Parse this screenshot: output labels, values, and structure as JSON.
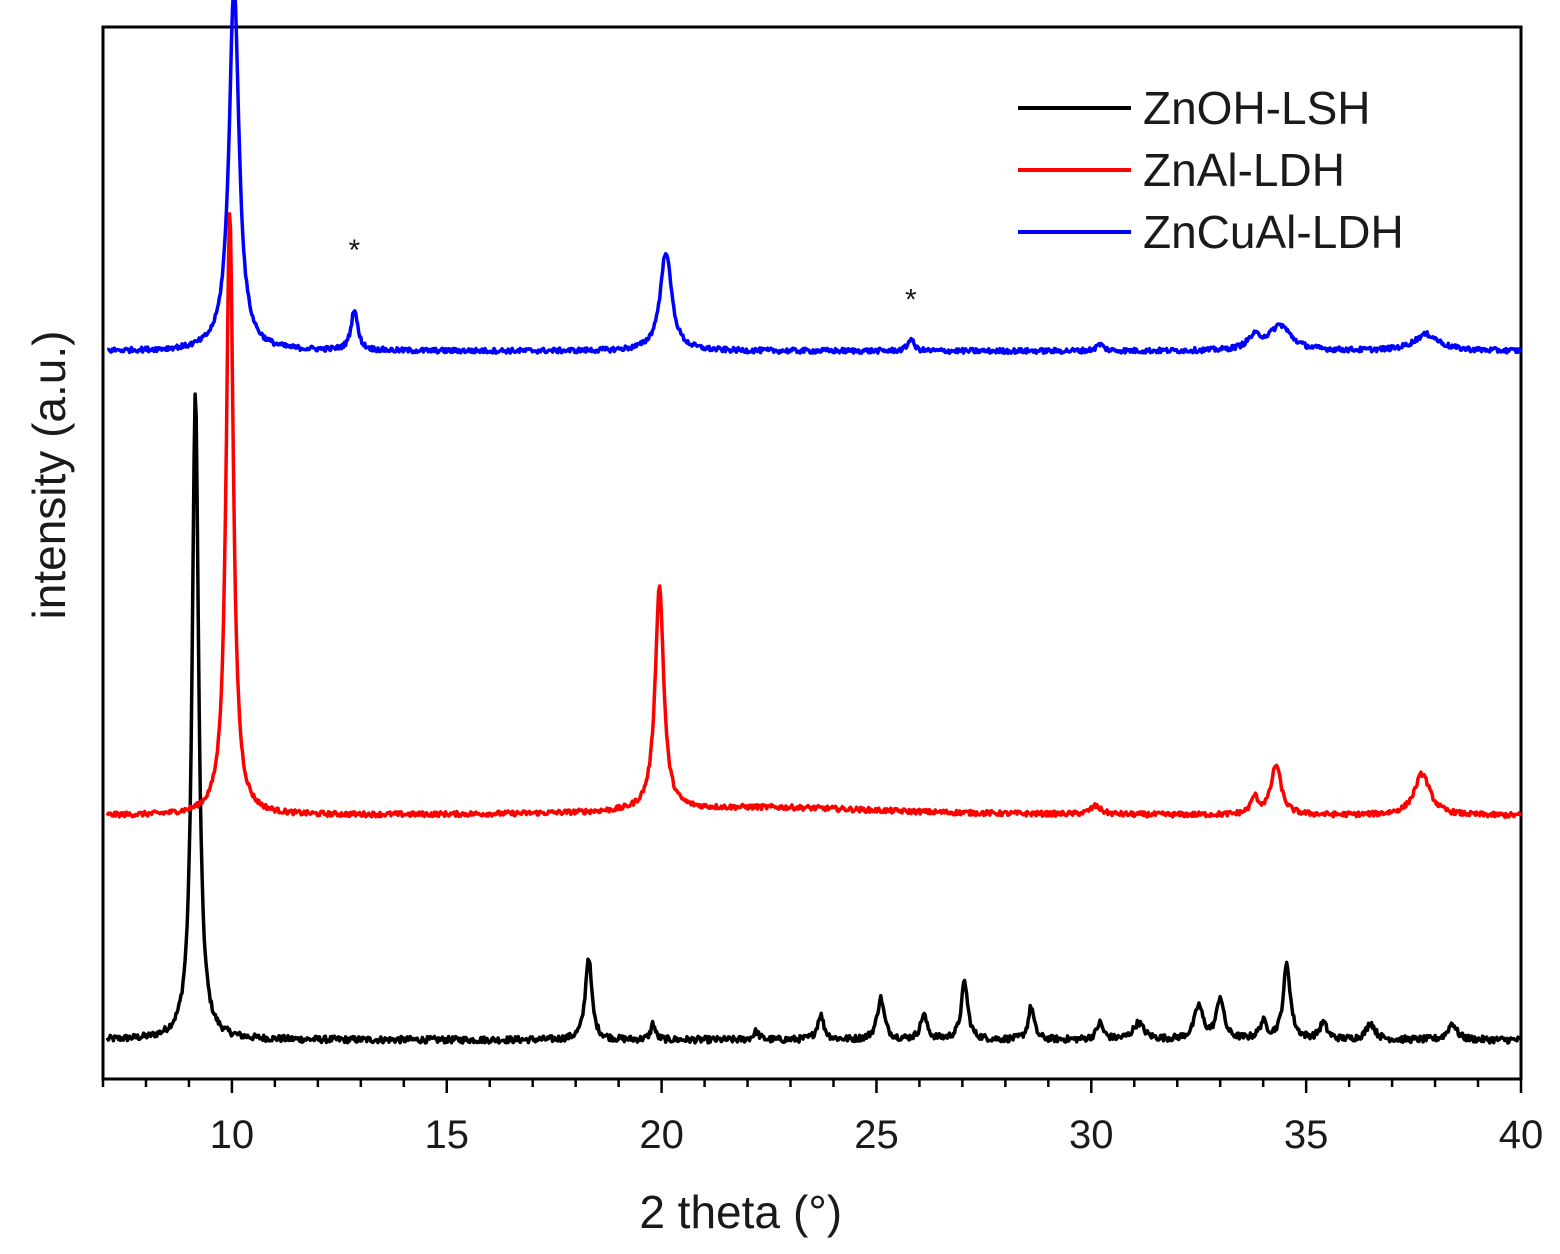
{
  "chart_data": {
    "type": "line",
    "title": "",
    "xlabel": "2 theta",
    "xunit": "(°)",
    "ylabel": "intensity (a.u.)",
    "xlim": [
      7,
      40
    ],
    "xticks": [
      10,
      15,
      20,
      25,
      30,
      35,
      40
    ],
    "y_ticks_shown": false,
    "grid": false,
    "legend_position": "top-right",
    "series": [
      {
        "name": "ZnOH-LSH",
        "color": "#000000",
        "baseline": 0.0,
        "noise": 0.004,
        "peaks": [
          {
            "x": 9.15,
            "height": 0.78,
            "width": 0.09
          },
          {
            "x": 18.3,
            "height": 0.1,
            "width": 0.09
          },
          {
            "x": 19.8,
            "height": 0.02,
            "width": 0.06
          },
          {
            "x": 22.2,
            "height": 0.01,
            "width": 0.08
          },
          {
            "x": 23.7,
            "height": 0.03,
            "width": 0.09
          },
          {
            "x": 25.1,
            "height": 0.05,
            "width": 0.1
          },
          {
            "x": 26.1,
            "height": 0.03,
            "width": 0.09
          },
          {
            "x": 27.05,
            "height": 0.07,
            "width": 0.09
          },
          {
            "x": 28.6,
            "height": 0.04,
            "width": 0.08
          },
          {
            "x": 30.2,
            "height": 0.02,
            "width": 0.09
          },
          {
            "x": 31.1,
            "height": 0.02,
            "width": 0.15
          },
          {
            "x": 32.5,
            "height": 0.04,
            "width": 0.12
          },
          {
            "x": 33.0,
            "height": 0.05,
            "width": 0.1
          },
          {
            "x": 34.0,
            "height": 0.02,
            "width": 0.1
          },
          {
            "x": 34.55,
            "height": 0.09,
            "width": 0.1
          },
          {
            "x": 35.4,
            "height": 0.02,
            "width": 0.1
          },
          {
            "x": 36.5,
            "height": 0.02,
            "width": 0.12
          },
          {
            "x": 38.4,
            "height": 0.02,
            "width": 0.12
          }
        ]
      },
      {
        "name": "ZnAl-LDH",
        "color": "#ff0000",
        "baseline": 0.27,
        "noise": 0.003,
        "peaks": [
          {
            "x": 9.95,
            "height": 0.73,
            "width": 0.1
          },
          {
            "x": 19.95,
            "height": 0.27,
            "width": 0.12
          },
          {
            "x": 22.5,
            "height": 0.01,
            "width": 3.5
          },
          {
            "x": 30.1,
            "height": 0.01,
            "width": 0.15
          },
          {
            "x": 33.8,
            "height": 0.02,
            "width": 0.1
          },
          {
            "x": 34.3,
            "height": 0.06,
            "width": 0.14
          },
          {
            "x": 37.7,
            "height": 0.05,
            "width": 0.22
          }
        ]
      },
      {
        "name": "ZnCuAl-LDH",
        "color": "#0000ff",
        "baseline": 0.83,
        "noise": 0.003,
        "peaks": [
          {
            "x": 10.05,
            "height": 0.44,
            "width": 0.14
          },
          {
            "x": 12.85,
            "height": 0.05,
            "width": 0.09
          },
          {
            "x": 20.1,
            "height": 0.12,
            "width": 0.16
          },
          {
            "x": 25.8,
            "height": 0.015,
            "width": 0.08
          },
          {
            "x": 30.2,
            "height": 0.008,
            "width": 0.1
          },
          {
            "x": 33.8,
            "height": 0.015,
            "width": 0.2
          },
          {
            "x": 34.4,
            "height": 0.03,
            "width": 0.3
          },
          {
            "x": 37.8,
            "height": 0.02,
            "width": 0.35
          }
        ]
      }
    ],
    "annotations": [
      {
        "text": "*",
        "x": 12.85,
        "y": 0.94
      },
      {
        "text": "*",
        "x": 25.8,
        "y": 0.88
      }
    ]
  }
}
